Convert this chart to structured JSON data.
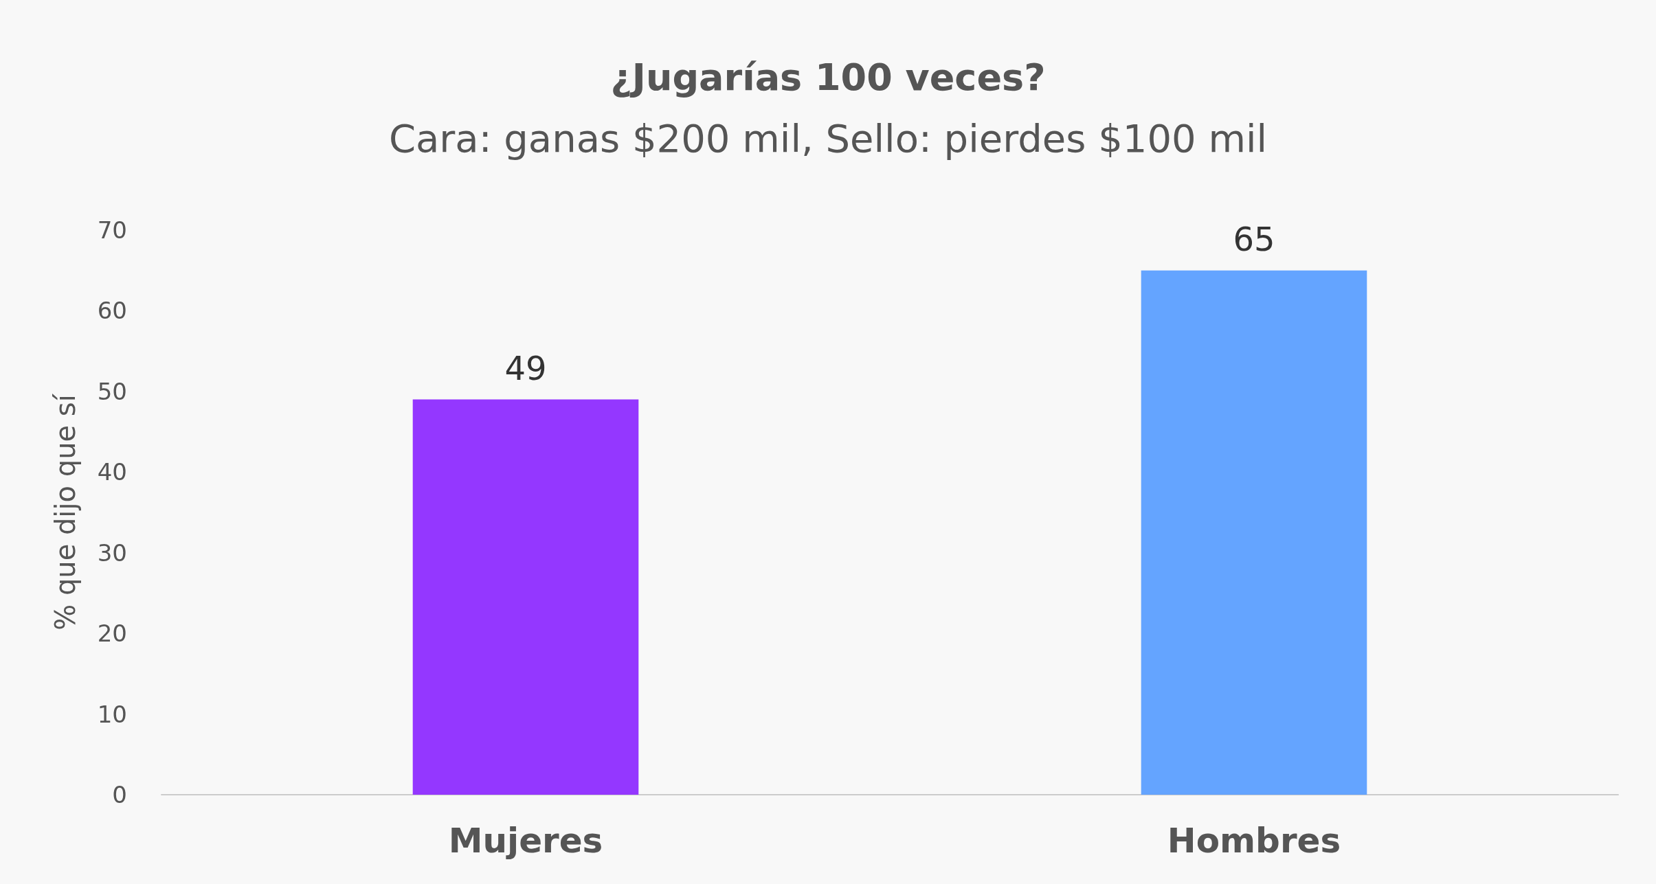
{
  "chart_data": {
    "type": "bar",
    "title": "¿Jugarías 100 veces?",
    "subtitle": "Cara: ganas $200 mil, Sello: pierdes $100 mil",
    "ylabel": "% que dijo que sí",
    "categories": [
      "Mujeres",
      "Hombres"
    ],
    "values": [
      49,
      65
    ],
    "colors": [
      "#9437ff",
      "#64a4ff"
    ],
    "ylim": [
      0,
      70
    ],
    "yticks": [
      0,
      10,
      20,
      30,
      40,
      50,
      60,
      70
    ],
    "grid": false,
    "data_labels": true
  }
}
